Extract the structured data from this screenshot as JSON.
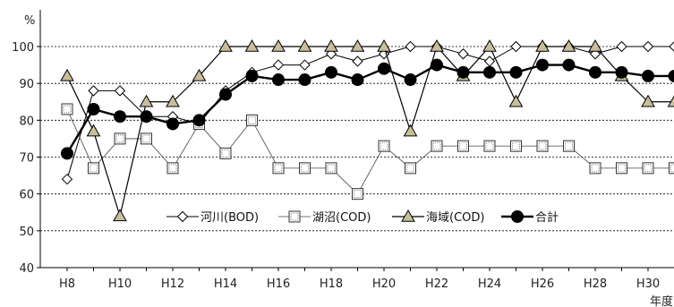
{
  "chart_data": {
    "type": "line",
    "title": "",
    "ylabel_unit": "%",
    "xlabel": "年度",
    "ylim": [
      40,
      100
    ],
    "yticks": [
      40,
      50,
      60,
      70,
      80,
      90,
      100
    ],
    "grid": "horizontal-dashed",
    "legend_placement": "center-inside",
    "x": [
      "H8",
      "H9",
      "H10",
      "H11",
      "H12",
      "H13",
      "H14",
      "H15",
      "H16",
      "H17",
      "H18",
      "H19",
      "H20",
      "H21",
      "H22",
      "H23",
      "H24",
      "H25",
      "H26",
      "H27",
      "H28",
      "H29",
      "H30",
      "H31"
    ],
    "xtick_labels": [
      "H8",
      "",
      "H10",
      "",
      "H12",
      "",
      "H14",
      "",
      "H16",
      "",
      "H18",
      "",
      "H20",
      "",
      "H22",
      "",
      "H24",
      "",
      "H26",
      "",
      "H28",
      "",
      "H30",
      ""
    ],
    "series": [
      {
        "name": "河川(BOD)",
        "marker": "diamond",
        "color": "#000000",
        "fill": "#ffffff",
        "stroke_width": 1,
        "values": [
          64,
          88,
          88,
          81,
          81,
          79,
          88,
          93,
          95,
          95,
          98,
          96,
          98,
          100,
          100,
          98,
          96,
          100,
          100,
          100,
          98,
          100,
          100,
          100
        ]
      },
      {
        "name": "湖沼(COD)",
        "marker": "square-dotted",
        "color": "#444444",
        "fill": "#ffffff",
        "stroke_width": 0.8,
        "values": [
          83,
          67,
          75,
          75,
          67,
          79,
          71,
          80,
          67,
          67,
          67,
          60,
          73,
          67,
          73,
          73,
          73,
          73,
          73,
          73,
          67,
          67,
          67,
          67
        ]
      },
      {
        "name": "海域(COD)",
        "marker": "triangle",
        "color": "#000000",
        "fill": "#c8bf9a",
        "stroke_width": 1.2,
        "values": [
          92,
          77,
          54,
          85,
          85,
          92,
          100,
          100,
          100,
          100,
          100,
          100,
          100,
          77,
          100,
          92,
          100,
          85,
          100,
          100,
          100,
          92,
          85,
          85
        ]
      },
      {
        "name": "合計",
        "marker": "circle",
        "color": "#000000",
        "fill": "#000000",
        "stroke_width": 2.4,
        "values": [
          71,
          83,
          81,
          81,
          79,
          80,
          87,
          92,
          91,
          91,
          93,
          91,
          94,
          91,
          95,
          93,
          93,
          93,
          95,
          95,
          93,
          93,
          92,
          92
        ]
      }
    ]
  }
}
